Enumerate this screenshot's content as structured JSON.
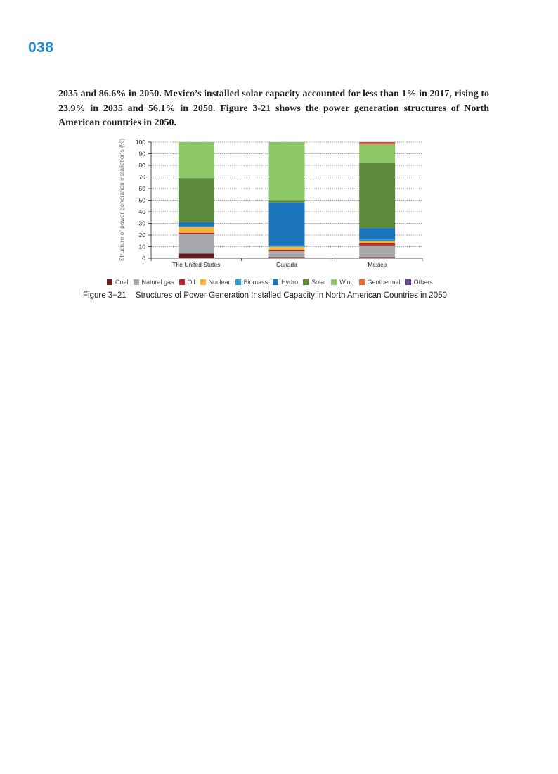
{
  "page_number": "038",
  "paragraph": "2035 and 86.6% in 2050. Mexico’s installed solar capacity accounted for less than 1% in 2017, rising to 23.9% in 2035 and 56.1% in 2050. Figure 3-21 shows the power generation structures of North American countries in 2050.",
  "figure": {
    "number": "Figure 3−21",
    "title": "Structures of Power Generation Installed Capacity in North American Countries in 2050"
  },
  "colors": {
    "page_number": "#1f8ac9",
    "Coal": "#6b1d1d",
    "Natural gas": "#a7a9ac",
    "Oil": "#c1272d",
    "Nuclear": "#f6b33c",
    "Biomass": "#21a0db",
    "Hydro": "#1b75bc",
    "Solar": "#5c8a3c",
    "Wind": "#8cc866",
    "Geothermal": "#f26522",
    "Others": "#6a3d9a"
  },
  "chart_data": {
    "type": "bar",
    "stacked": true,
    "categories": [
      "The United States",
      "Canada",
      "Mexico"
    ],
    "ylabel": "Structure of power generation installations (%)",
    "ylim": [
      0,
      100
    ],
    "yticks": [
      0,
      10,
      20,
      30,
      40,
      50,
      60,
      70,
      80,
      90,
      100
    ],
    "grid": true,
    "legend_position": "bottom",
    "series": [
      {
        "name": "Coal",
        "values": [
          4,
          1,
          1
        ]
      },
      {
        "name": "Natural gas",
        "values": [
          17,
          5,
          10
        ]
      },
      {
        "name": "Oil",
        "values": [
          1,
          1,
          2
        ]
      },
      {
        "name": "Nuclear",
        "values": [
          5,
          3,
          2
        ]
      },
      {
        "name": "Biomass",
        "values": [
          0.5,
          1,
          1
        ]
      },
      {
        "name": "Hydro",
        "values": [
          3.5,
          37,
          10
        ]
      },
      {
        "name": "Solar",
        "values": [
          38,
          2,
          56
        ]
      },
      {
        "name": "Wind",
        "values": [
          31,
          50,
          16
        ]
      },
      {
        "name": "Geothermal",
        "values": [
          0,
          0,
          1.5
        ]
      },
      {
        "name": "Others",
        "values": [
          0,
          0,
          0.5
        ]
      }
    ]
  }
}
